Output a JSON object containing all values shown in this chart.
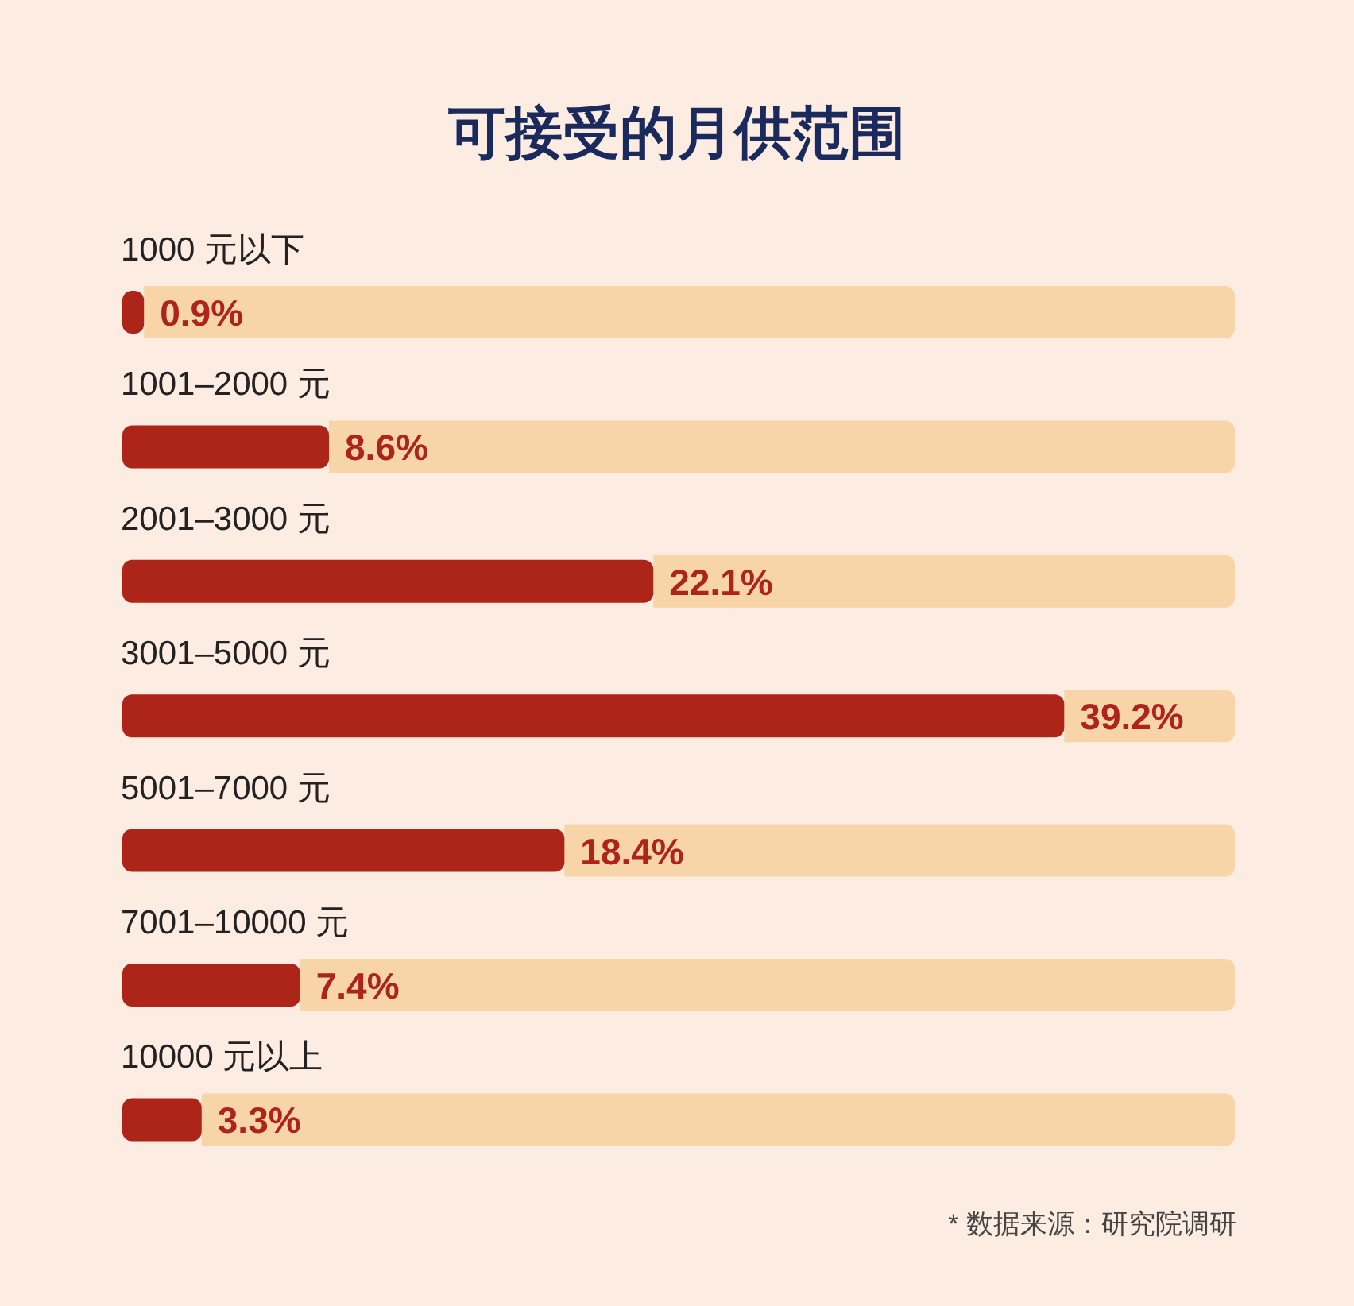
{
  "chart_data": {
    "type": "bar",
    "orientation": "horizontal",
    "stacked": true,
    "title": "可接受的月供范围",
    "categories": [
      "1000 元以下",
      "1001–2000 元",
      "2001–3000 元",
      "3001–5000 元",
      "5001–7000 元",
      "7001–10000 元",
      "10000 元以上"
    ],
    "series": [
      {
        "color": "#ad2418",
        "values": [
          0.9,
          8.6,
          22.1,
          39.2,
          18.4,
          7.4,
          3.3
        ],
        "value_labels": [
          "0.9%",
          "8.6%",
          "22.1%",
          "39.2%",
          "18.4%",
          "7.4%",
          "3.3%"
        ]
      },
      {
        "color": "#f7d5a8",
        "values": [
          45.4,
          37.7,
          24.2,
          7.1,
          27.9,
          38.9,
          43.0
        ]
      }
    ],
    "tick_labels": "y",
    "annotations": [
      "* 数据来源：研究院调研"
    ]
  }
}
